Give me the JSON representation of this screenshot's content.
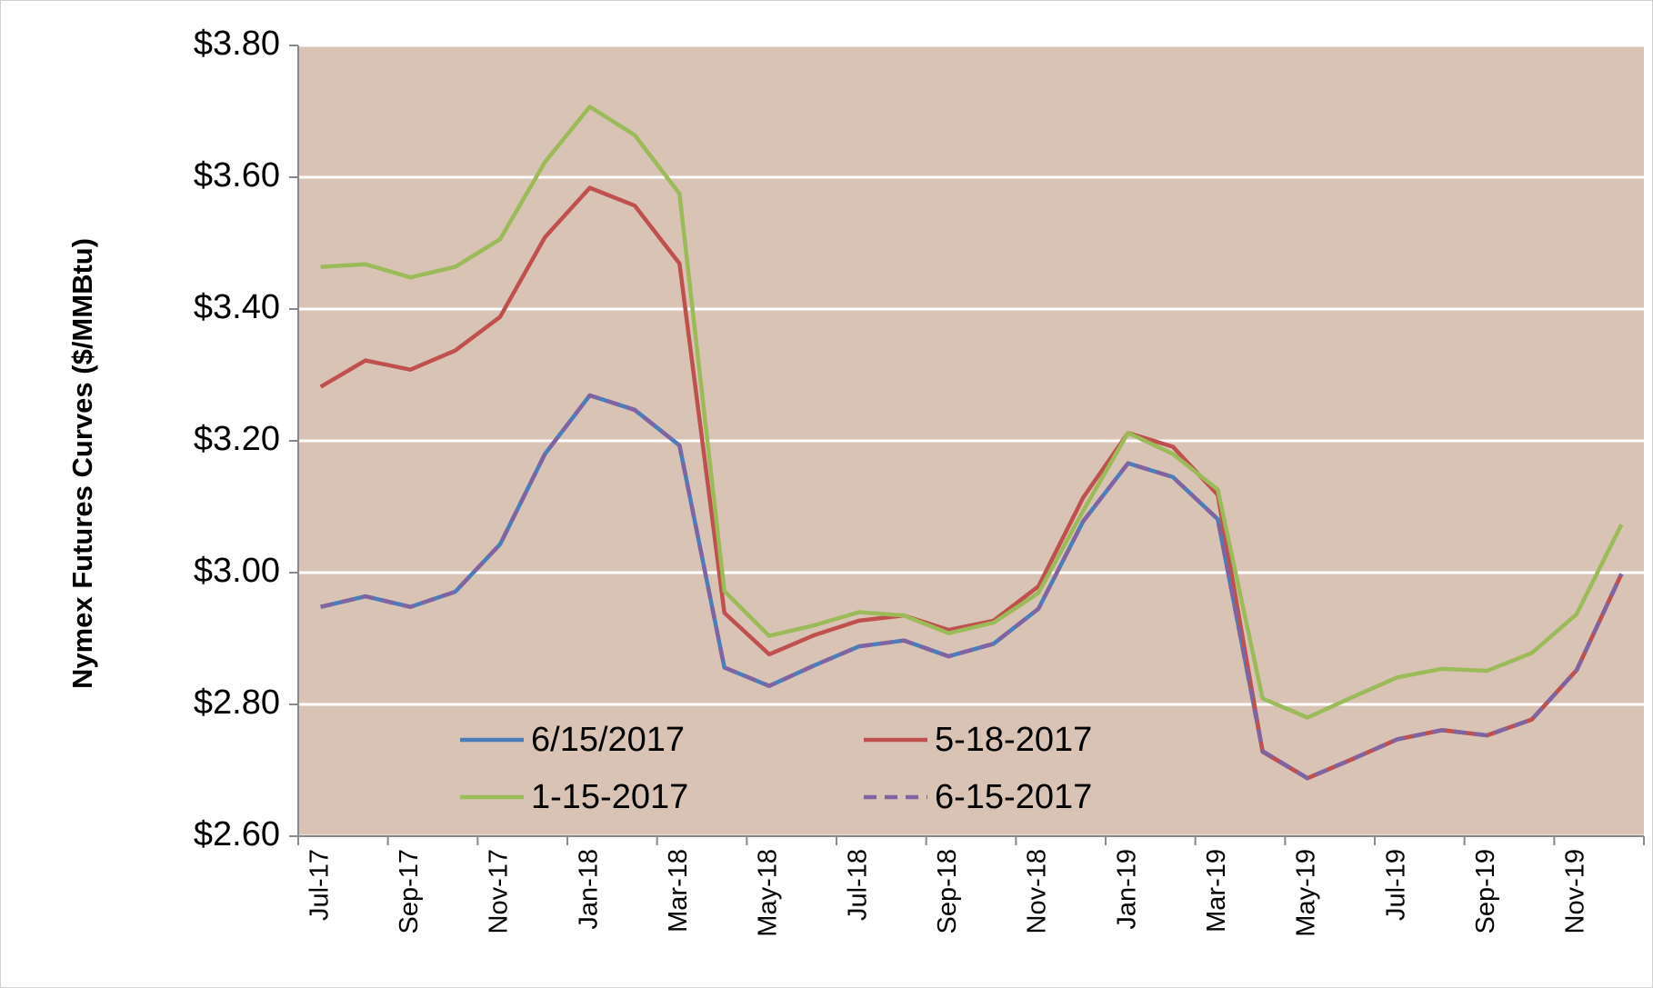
{
  "chart_data": {
    "type": "line",
    "ylabel": "Nymex Futures Curves ($/MMBtu)",
    "categories": [
      "Jul-17",
      null,
      "Sep-17",
      null,
      "Nov-17",
      null,
      "Jan-18",
      null,
      "Mar-18",
      null,
      "May-18",
      null,
      "Jul-18",
      null,
      "Sep-18",
      null,
      "Nov-18",
      null,
      "Jan-19",
      null,
      "Mar-19",
      null,
      "May-19",
      null,
      "Jul-19",
      null,
      "Sep-19",
      null,
      "Nov-19",
      null
    ],
    "series": [
      {
        "name": "6/15/2017",
        "color": "#4a7ebb",
        "dashed": false,
        "values": [
          2.948,
          2.964,
          2.948,
          2.971,
          3.043,
          3.18,
          3.269,
          3.247,
          3.193,
          2.856,
          2.828,
          2.859,
          2.888,
          2.897,
          2.873,
          2.892,
          2.945,
          3.078,
          3.166,
          3.145,
          3.081,
          2.729,
          2.688,
          2.717,
          2.747,
          2.761,
          2.753,
          2.777,
          2.852,
          2.998
        ]
      },
      {
        "name": "5-18-2017",
        "color": "#c0504d",
        "dashed": false,
        "values": [
          3.282,
          3.322,
          3.308,
          3.337,
          3.388,
          3.509,
          3.584,
          3.557,
          3.469,
          2.939,
          2.876,
          2.905,
          2.927,
          2.935,
          2.913,
          2.927,
          2.979,
          3.114,
          3.212,
          3.191,
          3.118,
          2.728,
          2.688,
          2.717,
          2.747,
          2.761,
          2.753,
          2.777,
          2.852,
          2.998
        ]
      },
      {
        "name": "1-15-2017",
        "color": "#9bbb59",
        "dashed": false,
        "values": [
          3.464,
          3.468,
          3.448,
          3.464,
          3.506,
          3.623,
          3.707,
          3.664,
          3.575,
          2.972,
          2.904,
          2.92,
          2.94,
          2.935,
          2.908,
          2.924,
          2.969,
          3.094,
          3.212,
          3.18,
          3.126,
          2.809,
          2.78,
          2.811,
          2.841,
          2.854,
          2.851,
          2.878,
          2.937,
          3.073
        ]
      },
      {
        "name": "6-15-2017",
        "color": "#8064a2",
        "dashed": true,
        "values": [
          2.948,
          2.964,
          2.948,
          2.971,
          3.043,
          3.18,
          3.269,
          3.247,
          3.193,
          2.856,
          2.828,
          2.859,
          2.888,
          2.897,
          2.873,
          2.892,
          2.945,
          3.078,
          3.166,
          3.145,
          3.081,
          2.729,
          2.688,
          2.717,
          2.747,
          2.761,
          2.753,
          2.777,
          2.852,
          2.998
        ]
      }
    ],
    "ylim": [
      2.6,
      3.8
    ],
    "yticks": [
      {
        "value": 2.6,
        "label": "$2.60"
      },
      {
        "value": 2.8,
        "label": "$2.80"
      },
      {
        "value": 3.0,
        "label": "$3.00"
      },
      {
        "value": 3.2,
        "label": "$3.20"
      },
      {
        "value": 3.4,
        "label": "$3.40"
      },
      {
        "value": 3.6,
        "label": "$3.60"
      },
      {
        "value": 3.8,
        "label": "$3.80"
      }
    ],
    "grid": true,
    "plot_background": "#d9c3b5",
    "legend": "bottom-left"
  }
}
